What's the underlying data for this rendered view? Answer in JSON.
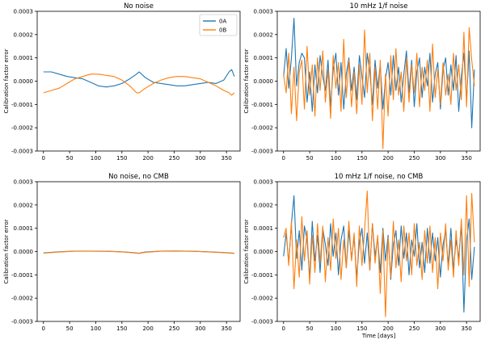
{
  "chart_data": [
    {
      "type": "line",
      "title": "No noise",
      "xlabel": "",
      "ylabel": "Calibration factor error",
      "xlim": [
        -12,
        376
      ],
      "ylim": [
        -0.0003,
        0.0003
      ],
      "xticks": [
        0,
        50,
        100,
        150,
        200,
        250,
        300,
        350
      ],
      "yticks": [
        "0.0003",
        "0.0002",
        "0.0001",
        "0.0000",
        "-0.0001",
        "-0.0002",
        "-0.0003"
      ],
      "ytick_values": [
        0.0003,
        0.0002,
        0.0001,
        0,
        -0.0001,
        -0.0002,
        -0.0003
      ],
      "legend": {
        "position": "top-right",
        "entries": [
          "0A",
          "0B"
        ]
      },
      "series": [
        {
          "name": "0A",
          "color": "#1f77b4",
          "x": [
            0,
            15,
            30,
            45,
            60,
            75,
            90,
            105,
            120,
            135,
            150,
            165,
            178,
            183,
            195,
            210,
            225,
            240,
            255,
            270,
            285,
            300,
            315,
            330,
            345,
            355,
            360,
            365
          ],
          "y": [
            4e-05,
            4e-05,
            3e-05,
            2e-05,
            1.5e-05,
            1e-05,
            -5e-06,
            -2e-05,
            -2.5e-05,
            -2e-05,
            -1e-05,
            1e-05,
            3e-05,
            4e-05,
            1.5e-05,
            -5e-06,
            -1e-05,
            -1.5e-05,
            -2e-05,
            -2e-05,
            -1.5e-05,
            -1e-05,
            -5e-06,
            -1e-05,
            5e-06,
            4e-05,
            5e-05,
            2e-05
          ]
        },
        {
          "name": "0B",
          "color": "#ff7f0e",
          "x": [
            0,
            15,
            30,
            45,
            60,
            75,
            90,
            105,
            120,
            135,
            150,
            165,
            178,
            183,
            195,
            210,
            225,
            240,
            255,
            270,
            285,
            300,
            315,
            330,
            345,
            355,
            360,
            365
          ],
          "y": [
            -5e-05,
            -4e-05,
            -3e-05,
            -1e-05,
            1e-05,
            2e-05,
            3e-05,
            3e-05,
            2.5e-05,
            2e-05,
            5e-06,
            -2e-05,
            -5e-05,
            -5e-05,
            -3e-05,
            -1e-05,
            5e-06,
            1.5e-05,
            2e-05,
            2e-05,
            1.5e-05,
            1e-05,
            -5e-06,
            -2e-05,
            -4e-05,
            -5e-05,
            -6e-05,
            -5e-05
          ]
        }
      ]
    },
    {
      "type": "line",
      "title": "10 mHz 1/f noise",
      "xlabel": "",
      "ylabel": "Calibration factor error",
      "xlim": [
        -12,
        376
      ],
      "ylim": [
        -0.0003,
        0.0003
      ],
      "xticks": [
        0,
        50,
        100,
        150,
        200,
        250,
        300,
        350
      ],
      "yticks": [
        "0.0003",
        "0.0002",
        "0.0001",
        "0.0000",
        "-0.0001",
        "-0.0002",
        "-0.0003"
      ],
      "ytick_values": [
        0.0003,
        0.0002,
        0.0001,
        0,
        -0.0001,
        -0.0002,
        -0.0003
      ],
      "series": [
        {
          "name": "0A",
          "color": "#1f77b4",
          "x": [
            0,
            5,
            10,
            15,
            20,
            25,
            30,
            35,
            40,
            45,
            50,
            55,
            60,
            65,
            70,
            75,
            80,
            85,
            90,
            95,
            100,
            105,
            110,
            115,
            120,
            125,
            130,
            135,
            140,
            145,
            150,
            155,
            160,
            165,
            170,
            175,
            180,
            185,
            190,
            195,
            200,
            205,
            210,
            215,
            220,
            225,
            230,
            235,
            240,
            245,
            250,
            255,
            260,
            265,
            270,
            275,
            280,
            285,
            290,
            295,
            300,
            305,
            310,
            315,
            320,
            325,
            330,
            335,
            340,
            345,
            350,
            355,
            360,
            365
          ],
          "y": [
            2e-05,
            0.00014,
            -3e-05,
            0.0001,
            0.00027,
            -2e-05,
            8e-05,
            0.00012,
            0.0001,
            -9e-05,
            4e-05,
            -0.00013,
            7e-05,
            -5e-05,
            0.00011,
            2e-05,
            -4e-05,
            9e-05,
            -0.00011,
            5e-05,
            0.00012,
            -6e-05,
            8e-05,
            -0.00012,
            3e-05,
            0.0001,
            -4e-05,
            6e-05,
            -8e-05,
            0.00011,
            2e-05,
            -7e-05,
            0.00012,
            4e-05,
            -0.0001,
            9e-05,
            -3e-05,
            7e-05,
            -0.00012,
            1e-05,
            8e-05,
            -6e-05,
            0.00011,
            -4e-05,
            6e-05,
            -9e-05,
            3e-05,
            0.00013,
            -5e-05,
            9e-05,
            -0.00011,
            4e-05,
            0.0001,
            -7e-05,
            6e-05,
            -2e-05,
            0.00012,
            -9e-05,
            3e-05,
            8e-05,
            -0.00012,
            5e-05,
            0.0001,
            -6e-05,
            7e-05,
            -4e-05,
            0.00011,
            -0.00013,
            2e-05,
            0.00012,
            -8e-05,
            0.00013,
            -0.0002,
            5e-05
          ]
        },
        {
          "name": "0B",
          "color": "#ff7f0e",
          "x": [
            0,
            5,
            10,
            15,
            20,
            25,
            30,
            35,
            40,
            45,
            50,
            55,
            60,
            65,
            70,
            75,
            80,
            85,
            90,
            95,
            100,
            105,
            110,
            115,
            120,
            125,
            130,
            135,
            140,
            145,
            150,
            155,
            160,
            165,
            170,
            175,
            180,
            185,
            190,
            195,
            200,
            205,
            210,
            215,
            220,
            225,
            230,
            235,
            240,
            245,
            250,
            255,
            260,
            265,
            270,
            275,
            280,
            285,
            290,
            295,
            300,
            305,
            310,
            315,
            320,
            325,
            330,
            335,
            340,
            345,
            350,
            355,
            360,
            365
          ],
          "y": [
            3e-05,
            -5e-05,
            0.00012,
            -0.00014,
            6e-05,
            -0.00017,
            4e-05,
            9e-05,
            -0.00012,
            0.00015,
            -6e-05,
            7e-05,
            -0.00015,
            0.0001,
            -4e-05,
            0.00013,
            -9e-05,
            5e-05,
            -0.00016,
            0.00011,
            -3e-05,
            8e-05,
            -0.00013,
            0.00018,
            -7e-05,
            9e-05,
            -0.00011,
            4e-05,
            -0.00014,
            7e-05,
            -0.0001,
            0.00022,
            -5e-05,
            0.00012,
            -0.00017,
            6e-05,
            -0.00012,
            9e-05,
            -0.00029,
            3e-05,
            -0.00015,
            0.00011,
            -8e-05,
            0.00014,
            -6e-05,
            4e-05,
            -0.00013,
            0.0001,
            -9e-05,
            7e-05,
            -5e-05,
            0.00012,
            -0.00011,
            6e-05,
            -4e-05,
            9e-05,
            -0.00013,
            0.00016,
            -7e-05,
            5e-05,
            -0.0001,
            8e-05,
            -6e-05,
            3e-05,
            -0.0001,
            0.00012,
            -4e-05,
            7e-05,
            -8e-05,
            0.00021,
            -0.00011,
            0.00023,
            9e-05,
            -2e-05
          ]
        }
      ]
    },
    {
      "type": "line",
      "title": "No noise, no CMB",
      "xlabel": "",
      "ylabel": "Calibration factor error",
      "xlim": [
        -12,
        376
      ],
      "ylim": [
        -0.0003,
        0.0003
      ],
      "xticks": [
        0,
        50,
        100,
        150,
        200,
        250,
        300,
        350
      ],
      "yticks": [
        "0.0003",
        "0.0002",
        "0.0001",
        "0.0000",
        "-0.0001",
        "-0.0002",
        "-0.0003"
      ],
      "ytick_values": [
        0.0003,
        0.0002,
        0.0001,
        0,
        -0.0001,
        -0.0002,
        -0.0003
      ],
      "series": [
        {
          "name": "0A",
          "color": "#1f77b4",
          "x": [
            0,
            30,
            60,
            90,
            120,
            150,
            170,
            182,
            195,
            225,
            255,
            285,
            315,
            345,
            365
          ],
          "y": [
            -6e-06,
            -1e-06,
            2e-06,
            2e-06,
            1.5e-06,
            -1e-06,
            -4e-06,
            -7e-06,
            -2e-06,
            2e-06,
            2.5e-06,
            1.5e-06,
            -1e-06,
            -4e-06,
            -7e-06
          ]
        },
        {
          "name": "0B",
          "color": "#ff7f0e",
          "x": [
            0,
            30,
            60,
            90,
            120,
            150,
            170,
            182,
            195,
            225,
            255,
            285,
            315,
            345,
            365
          ],
          "y": [
            -7e-06,
            -2e-06,
            1.5e-06,
            1.5e-06,
            1e-06,
            -1.5e-06,
            -5e-06,
            -8e-06,
            -3e-06,
            1.5e-06,
            2e-06,
            1e-06,
            -1.5e-06,
            -5e-06,
            -8e-06
          ]
        }
      ]
    },
    {
      "type": "line",
      "title": "10 mHz 1/f noise, no CMB",
      "xlabel": "Time [days]",
      "ylabel": "Calibration factor error",
      "xlim": [
        -12,
        376
      ],
      "ylim": [
        -0.0003,
        0.0003
      ],
      "xticks": [
        0,
        50,
        100,
        150,
        200,
        250,
        300,
        350
      ],
      "yticks": [
        "0.0003",
        "0.0002",
        "0.0001",
        "0.0000",
        "-0.0001",
        "-0.0002",
        "-0.0003"
      ],
      "ytick_values": [
        0.0003,
        0.0002,
        0.0001,
        0,
        -0.0001,
        -0.0002,
        -0.0003
      ],
      "series": [
        {
          "name": "0A",
          "color": "#1f77b4",
          "x": [
            0,
            5,
            10,
            15,
            20,
            25,
            30,
            35,
            40,
            45,
            50,
            55,
            60,
            65,
            70,
            75,
            80,
            85,
            90,
            95,
            100,
            105,
            110,
            115,
            120,
            125,
            130,
            135,
            140,
            145,
            150,
            155,
            160,
            165,
            170,
            175,
            180,
            185,
            190,
            195,
            200,
            205,
            210,
            215,
            220,
            225,
            230,
            235,
            240,
            245,
            250,
            255,
            260,
            265,
            270,
            275,
            280,
            285,
            290,
            295,
            300,
            305,
            310,
            315,
            320,
            325,
            330,
            335,
            340,
            345,
            350,
            355,
            360,
            365
          ],
          "y": [
            -2e-05,
            8e-05,
            -5e-05,
            0.00012,
            0.00024,
            -3e-05,
            9e-05,
            -8e-05,
            0.00011,
            5e-05,
            -0.00012,
            0.00013,
            -4e-05,
            7e-05,
            -9e-05,
            0.0001,
            3e-05,
            -6e-05,
            0.00012,
            -2e-05,
            8e-05,
            -0.0001,
            5e-05,
            0.00011,
            -7e-05,
            9e-05,
            -3e-05,
            6e-05,
            -0.00011,
            4e-05,
            0.0001,
            -5e-05,
            8e-05,
            -8e-05,
            0.00012,
            -2e-05,
            6e-05,
            -9e-05,
            0.0001,
            -4e-05,
            7e-05,
            -0.00012,
            3e-05,
            9e-05,
            -6e-05,
            0.00011,
            -3e-05,
            8e-05,
            -0.0001,
            5e-05,
            -2e-05,
            0.00012,
            -7e-05,
            4e-05,
            -9e-05,
            0.0001,
            -5e-05,
            8e-05,
            -4e-05,
            6e-05,
            -0.00011,
            3e-05,
            9e-05,
            -6e-05,
            0.0001,
            -8e-05,
            5e-05,
            -3e-05,
            0.00012,
            -0.00026,
            5e-05,
            0.00014,
            -0.00012,
            2e-05
          ]
        },
        {
          "name": "0B",
          "color": "#ff7f0e",
          "x": [
            0,
            5,
            10,
            15,
            20,
            25,
            30,
            35,
            40,
            45,
            50,
            55,
            60,
            65,
            70,
            75,
            80,
            85,
            90,
            95,
            100,
            105,
            110,
            115,
            120,
            125,
            130,
            135,
            140,
            145,
            150,
            155,
            160,
            165,
            170,
            175,
            180,
            185,
            190,
            195,
            200,
            205,
            210,
            215,
            220,
            225,
            230,
            235,
            240,
            245,
            250,
            255,
            260,
            265,
            270,
            275,
            280,
            285,
            290,
            295,
            300,
            305,
            310,
            315,
            320,
            325,
            330,
            335,
            340,
            345,
            350,
            355,
            360,
            365
          ],
          "y": [
            6e-05,
            0.0001,
            -6e-05,
            0.00013,
            -0.00016,
            5e-05,
            -0.00011,
            0.00015,
            -4e-05,
            9e-05,
            -0.00014,
            7e-05,
            -9e-05,
            0.00012,
            -5e-05,
            0.00011,
            -0.00013,
            6e-05,
            -8e-05,
            0.00014,
            -3e-05,
            0.0001,
            -0.00012,
            5e-05,
            -7e-05,
            0.00013,
            -4e-05,
            8e-05,
            -0.00015,
            0.00011,
            -6e-05,
            9e-05,
            0.00026,
            -8e-05,
            0.00012,
            -5e-05,
            7e-05,
            -0.00018,
            9e-05,
            -0.00028,
            6e-05,
            -0.00011,
            0.00013,
            -7e-05,
            5e-05,
            -0.00013,
            0.00011,
            -4e-05,
            8e-05,
            -0.0001,
            0.00012,
            -6e-05,
            4e-05,
            -0.00012,
            9e-05,
            -5e-05,
            0.00011,
            -9e-05,
            6e-05,
            -0.00016,
            8e-05,
            -4e-05,
            0.00012,
            -8e-05,
            5e-05,
            -0.00011,
            9e-05,
            -6e-05,
            0.00014,
            -0.0001,
            0.00024,
            -0.00015,
            0.00025,
            4e-05
          ]
        }
      ]
    }
  ]
}
